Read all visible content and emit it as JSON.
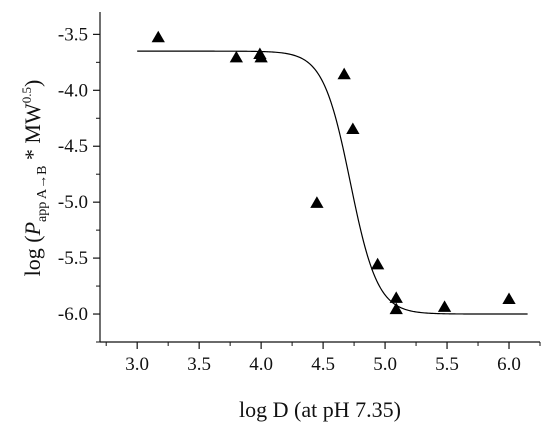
{
  "chart_data": {
    "type": "scatter",
    "xlabel": "log D (at pH 7.35)",
    "ylabel": {
      "prefix": "log (",
      "symbol": "P",
      "subscript": "app A→B",
      "mid": " * MW",
      "superscript": "0.5",
      "suffix": ")"
    },
    "xlim": [
      2.7,
      6.25
    ],
    "ylim": [
      -6.25,
      -3.3
    ],
    "xticks": [
      3.0,
      3.5,
      4.0,
      4.5,
      5.0,
      5.5,
      6.0
    ],
    "xtick_labels": [
      "3.0",
      "3.5",
      "4.0",
      "4.5",
      "5.0",
      "5.5",
      "6.0"
    ],
    "yticks": [
      -3.5,
      -4.0,
      -4.5,
      -5.0,
      -5.5,
      -6.0
    ],
    "ytick_labels": [
      "-3.5",
      "-4.0",
      "-4.5",
      "-5.0",
      "-5.5",
      "-6.0"
    ],
    "grid": false,
    "legend": "none",
    "marker": "triangle",
    "points": [
      {
        "x": 3.17,
        "y": -3.53
      },
      {
        "x": 3.8,
        "y": -3.71
      },
      {
        "x": 3.99,
        "y": -3.68
      },
      {
        "x": 4.0,
        "y": -3.71
      },
      {
        "x": 4.45,
        "y": -5.01
      },
      {
        "x": 4.67,
        "y": -3.86
      },
      {
        "x": 4.74,
        "y": -4.35
      },
      {
        "x": 4.94,
        "y": -5.56
      },
      {
        "x": 5.09,
        "y": -5.86
      },
      {
        "x": 5.09,
        "y": -5.96
      },
      {
        "x": 5.48,
        "y": -5.94
      },
      {
        "x": 6.0,
        "y": -5.87
      }
    ],
    "fit_curve": {
      "type": "sigmoid",
      "top": -3.65,
      "bottom": -6.0,
      "x50": 4.72,
      "slope": 0.11,
      "x_range": [
        3.0,
        6.15
      ]
    },
    "colors": {
      "axis": "#111111",
      "marker": "#000000",
      "curve": "#000000"
    }
  }
}
